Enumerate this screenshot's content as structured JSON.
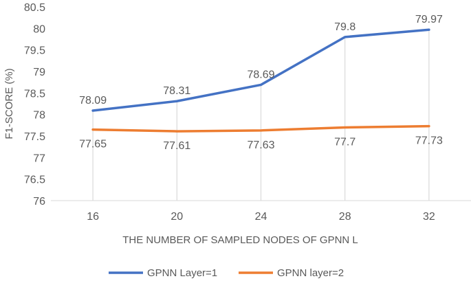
{
  "chart_data": {
    "type": "line",
    "title": "",
    "xlabel": "THE NUMBER OF SAMPLED NODES OF GPNN L",
    "ylabel": "F1-SCORE (%)",
    "categories": [
      "16",
      "20",
      "24",
      "28",
      "32"
    ],
    "ylim": [
      76,
      80.5
    ],
    "yticks": [
      "76",
      "76.5",
      "77",
      "77.5",
      "78",
      "78.5",
      "79",
      "79.5",
      "80",
      "80.5"
    ],
    "grid": "vertical drop lines at each category",
    "legend_position": "bottom",
    "series": [
      {
        "name": "GPNN Layer=1",
        "color": "#4472C4",
        "values": [
          78.09,
          78.31,
          78.69,
          79.8,
          79.97
        ],
        "labels": [
          "78.09",
          "78.31",
          "78.69",
          "79.8",
          "79.97"
        ],
        "label_position": "above"
      },
      {
        "name": "GPNN layer=2",
        "color": "#ED7D31",
        "values": [
          77.65,
          77.61,
          77.63,
          77.7,
          77.73
        ],
        "labels": [
          "77.65",
          "77.61",
          "77.63",
          "77.7",
          "77.73"
        ],
        "label_position": "below"
      }
    ]
  }
}
